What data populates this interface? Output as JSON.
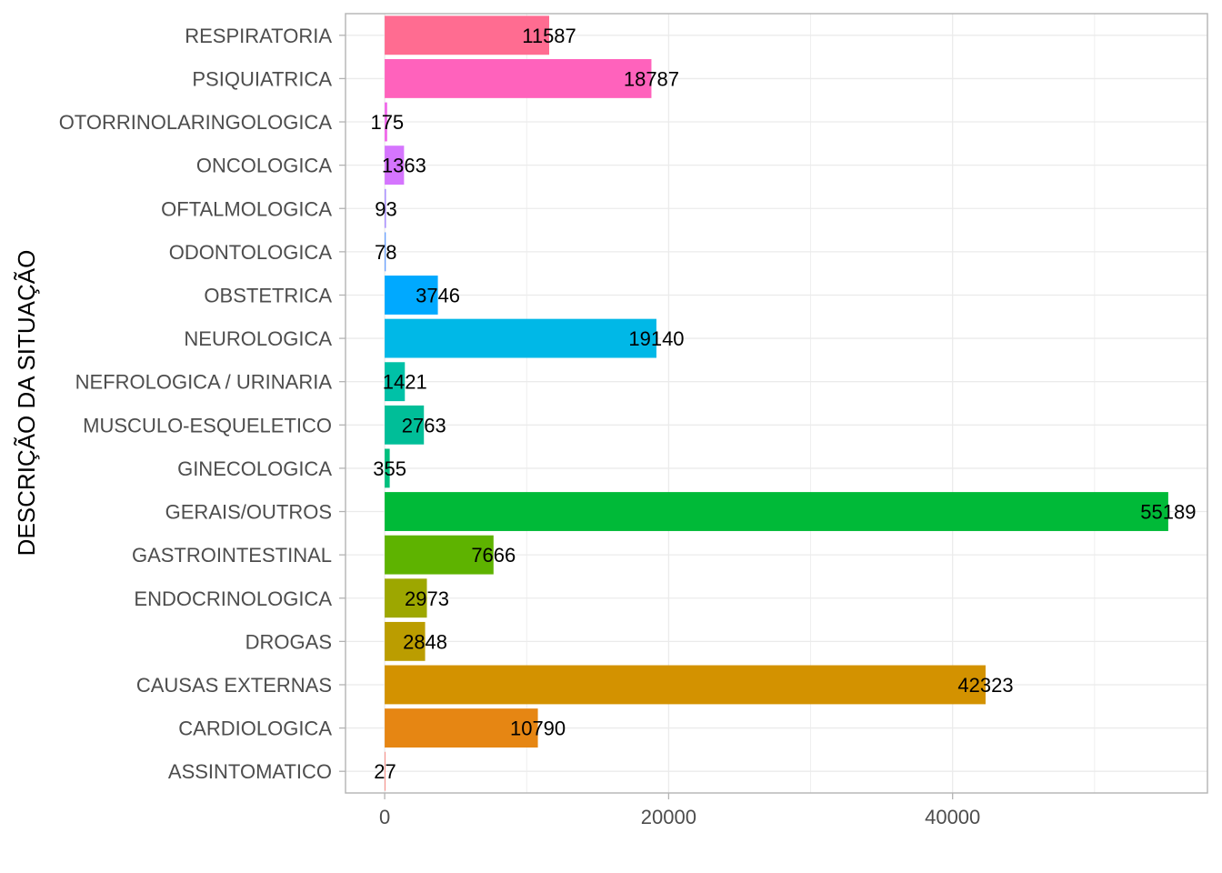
{
  "chart_data": {
    "type": "bar",
    "orientation": "horizontal",
    "ylabel": "DESCRIÇÃO DA SITUAÇÃO",
    "xlabel": "",
    "xlim": [
      -2759,
      57950
    ],
    "xticks": [
      0,
      20000,
      40000
    ],
    "grid": true,
    "legend": "none",
    "categories": [
      "RESPIRATORIA",
      "PSIQUIATRICA",
      "OTORRINOLARINGOLOGICA",
      "ONCOLOGICA",
      "OFTALMOLOGICA",
      "ODONTOLOGICA",
      "OBSTETRICA",
      "NEUROLOGICA",
      "NEFROLOGICA / URINARIA",
      "MUSCULO-ESQUELETICO",
      "GINECOLOGICA",
      "GERAIS/OUTROS",
      "GASTROINTESTINAL",
      "ENDOCRINOLOGICA",
      "DROGAS",
      "CAUSAS EXTERNAS",
      "CARDIOLOGICA",
      "ASSINTOMATICO"
    ],
    "values": [
      11587,
      18787,
      175,
      1363,
      93,
      78,
      3746,
      19140,
      1421,
      2763,
      355,
      55189,
      7666,
      2973,
      2848,
      42323,
      10790,
      27
    ],
    "colors": [
      "#FF6C91",
      "#FF62BC",
      "#F066EA",
      "#D575FE",
      "#A58AFF",
      "#619CFF",
      "#00A9FF",
      "#00B8E7",
      "#00C1A7",
      "#00BE98",
      "#00BF7D",
      "#00BA38",
      "#5EB300",
      "#9DA700",
      "#BB9D00",
      "#D39200",
      "#E68613",
      "#F8766D"
    ]
  }
}
